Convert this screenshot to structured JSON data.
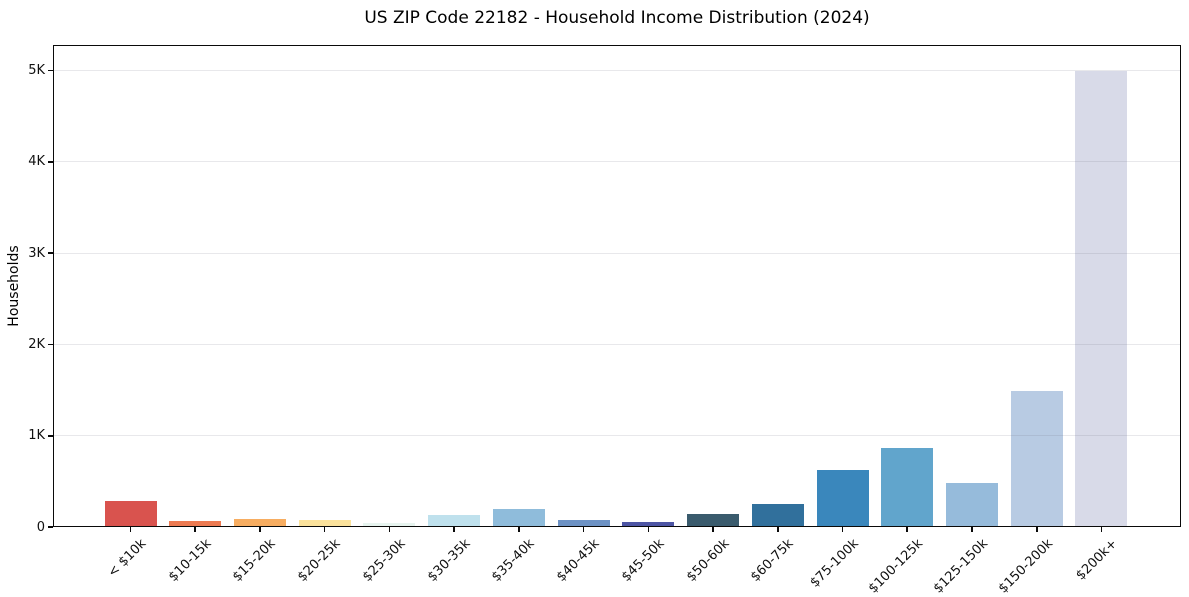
{
  "chart_data": {
    "type": "bar",
    "title": "US ZIP Code 22182 - Household Income Distribution (2024)",
    "xlabel": "",
    "ylabel": "Households",
    "categories": [
      "< $10k",
      "$10-15k",
      "$15-20k",
      "$20-25k",
      "$25-30k",
      "$30-35k",
      "$35-40k",
      "$40-45k",
      "$45-50k",
      "$50-60k",
      "$60-75k",
      "$75-100k",
      "$100-125k",
      "$125-150k",
      "$150-200k",
      "$200k+"
    ],
    "values": [
      290,
      65,
      90,
      80,
      40,
      130,
      195,
      80,
      50,
      140,
      255,
      620,
      865,
      480,
      1490,
      5000
    ],
    "bar_colors": [
      "#d9534e",
      "#ed7a51",
      "#f7ad61",
      "#fbe29c",
      "#e7f4ef",
      "#bfe1ed",
      "#8fbcdb",
      "#6d92c4",
      "#4d55a4",
      "#3a5b6d",
      "#31709c",
      "#3a87bc",
      "#61a5cc",
      "#96bbdb",
      "#b8cbe3",
      "#d8dae8"
    ],
    "ylim": [
      0,
      5280
    ],
    "yticks": [
      {
        "value": 0,
        "label": "0"
      },
      {
        "value": 1000,
        "label": "1K"
      },
      {
        "value": 2000,
        "label": "2K"
      },
      {
        "value": 3000,
        "label": "3K"
      },
      {
        "value": 4000,
        "label": "4K"
      },
      {
        "value": 5000,
        "label": "5K"
      }
    ],
    "grid": "horizontal",
    "legend": "none"
  }
}
